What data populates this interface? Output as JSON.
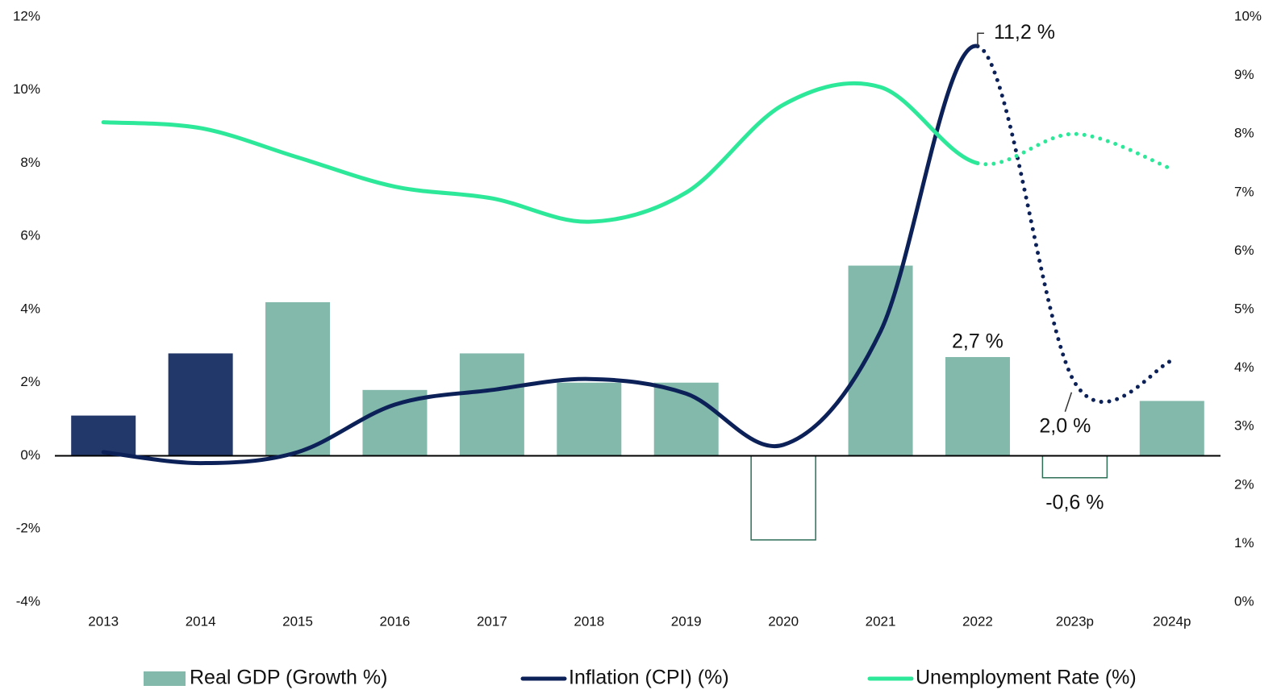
{
  "chart_data": {
    "type": "bar-line",
    "categories": [
      "2013",
      "2014",
      "2015",
      "2016",
      "2017",
      "2018",
      "2019",
      "2020",
      "2021",
      "2022",
      "2023p",
      "2024p"
    ],
    "series": [
      {
        "name": "Real GDP (Growth %)",
        "type": "bar",
        "color": "#82b9ab",
        "edge_color": "#2e6e57",
        "point_colors": [
          "#22376a",
          "#22376a",
          "#82b9ab",
          "#82b9ab",
          "#82b9ab",
          "#82b9ab",
          "#82b9ab",
          "none",
          "#82b9ab",
          "#82b9ab",
          "none",
          "#82b9ab"
        ],
        "values": [
          1.1,
          2.8,
          4.2,
          1.8,
          2.8,
          2.0,
          2.0,
          -2.3,
          5.2,
          2.7,
          -0.6,
          1.5
        ],
        "value_labels": [
          null,
          null,
          null,
          null,
          null,
          null,
          null,
          null,
          null,
          "2,7 %",
          "-0,6 %",
          null
        ]
      },
      {
        "name": "Inflation (CPI) (%)",
        "type": "line",
        "color": "#0d2159",
        "dotted_from": "2022",
        "values": [
          0.1,
          -0.2,
          0.1,
          1.4,
          1.8,
          2.1,
          1.7,
          0.3,
          3.4,
          11.2,
          2.0,
          2.6
        ],
        "value_labels": [
          null,
          null,
          null,
          null,
          null,
          null,
          null,
          null,
          null,
          "11,2 %",
          "2,0 %",
          null
        ]
      },
      {
        "name": "Unemployment Rate (%)",
        "type": "line",
        "axis": "y2",
        "color": "#2ee89a",
        "dotted_from": "2022",
        "values": [
          8.2,
          8.1,
          7.6,
          7.1,
          6.9,
          6.5,
          7.0,
          8.5,
          8.8,
          7.5,
          8.0,
          7.4
        ]
      }
    ],
    "ylim": [
      -4,
      12
    ],
    "yticks": [
      {
        "value": -4,
        "label": "-4%"
      },
      {
        "value": -2,
        "label": "-2%"
      },
      {
        "value": 0,
        "label": "0%"
      },
      {
        "value": 2,
        "label": "2%"
      },
      {
        "value": 4,
        "label": "4%"
      },
      {
        "value": 6,
        "label": "6%"
      },
      {
        "value": 8,
        "label": "8%"
      },
      {
        "value": 10,
        "label": "10%"
      },
      {
        "value": 12,
        "label": "12%"
      }
    ],
    "y2lim": [
      0,
      10
    ],
    "y2ticks": [
      {
        "value": 0,
        "label": "0%"
      },
      {
        "value": 1,
        "label": "1%"
      },
      {
        "value": 2,
        "label": "2%"
      },
      {
        "value": 3,
        "label": "3%"
      },
      {
        "value": 4,
        "label": "4%"
      },
      {
        "value": 5,
        "label": "5%"
      },
      {
        "value": 6,
        "label": "6%"
      },
      {
        "value": 7,
        "label": "7%"
      },
      {
        "value": 8,
        "label": "8%"
      },
      {
        "value": 9,
        "label": "9%"
      },
      {
        "value": 10,
        "label": "10%"
      }
    ],
    "legend": "bottom"
  }
}
